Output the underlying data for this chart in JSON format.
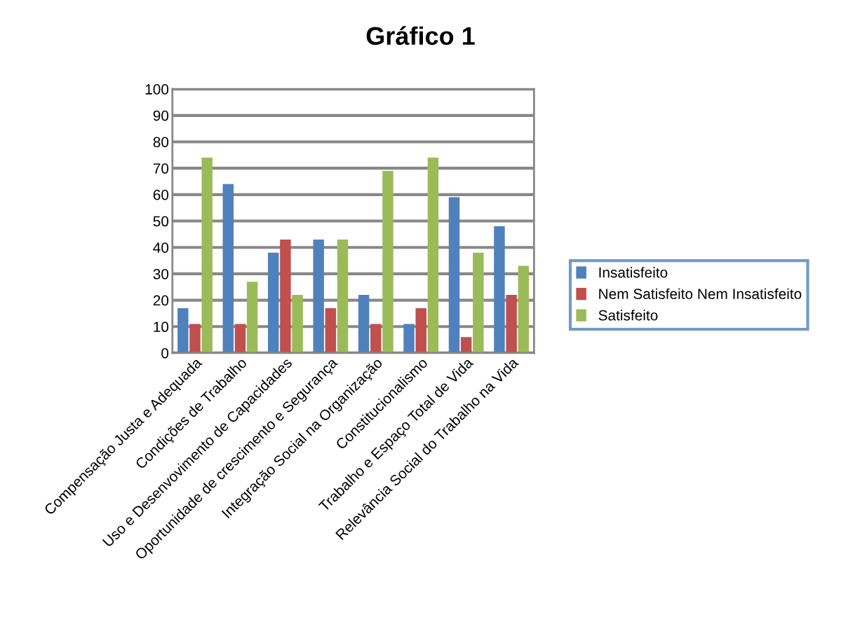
{
  "chart_data": {
    "type": "bar",
    "title": "Gráfico 1",
    "categories": [
      "Compensação Justa e Adequada",
      "Condições de Trabalho",
      "Uso e Desenvovimento de Capacidades",
      "Oportunidade de crescimento e Segurança",
      "Integração Social na Organização",
      "Constitucionalismo",
      "Trabalho e Espaço Total de Vida",
      "Relevância Social do Trabalho na Vida"
    ],
    "series": [
      {
        "name": "Insatisfeito",
        "color": "#4f81bd",
        "values": [
          17,
          64,
          38,
          43,
          22,
          11,
          59,
          48
        ]
      },
      {
        "name": "Nem Satisfeito Nem Insatisfeito",
        "color": "#c0504d",
        "values": [
          11,
          11,
          43,
          17,
          11,
          17,
          6,
          22
        ]
      },
      {
        "name": "Satisfeito",
        "color": "#9bbb59",
        "values": [
          74,
          27,
          22,
          43,
          69,
          74,
          38,
          33
        ]
      }
    ],
    "ylim": [
      0,
      100
    ],
    "yticks": [
      0,
      10,
      20,
      30,
      40,
      50,
      60,
      70,
      80,
      90,
      100
    ],
    "grid": "y",
    "legend": "right"
  }
}
